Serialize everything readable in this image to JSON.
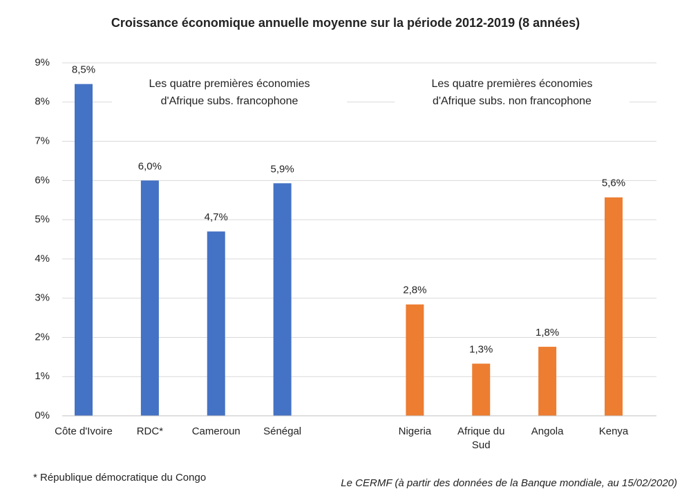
{
  "chart_data": {
    "type": "bar",
    "title": "Croissance économique annuelle moyenne sur la période 2012-2019  (8 années)",
    "categories": [
      "Côte d'Ivoire",
      "RDC*",
      "Cameroun",
      "Sénégal",
      null,
      "Nigeria",
      "Afrique du Sud",
      "Angola",
      "Kenya"
    ],
    "values": [
      8.46,
      6.0,
      4.7,
      5.93,
      null,
      2.84,
      1.33,
      1.76,
      5.57
    ],
    "value_labels": [
      "8,5%",
      "6,0%",
      "4,7%",
      "5,9%",
      null,
      "2,8%",
      "1,3%",
      "1,8%",
      "5,6%"
    ],
    "colors": [
      "#4472c4",
      "#4472c4",
      "#4472c4",
      "#4472c4",
      null,
      "#ed7d31",
      "#ed7d31",
      "#ed7d31",
      "#ed7d31"
    ],
    "ylim": [
      0,
      9
    ],
    "yticks": [
      {
        "value": 0,
        "label": "0%"
      },
      {
        "value": 1,
        "label": "1%"
      },
      {
        "value": 2,
        "label": "2%"
      },
      {
        "value": 3,
        "label": "3%"
      },
      {
        "value": 4,
        "label": "4%"
      },
      {
        "value": 5,
        "label": "5%"
      },
      {
        "value": 6,
        "label": "6%"
      },
      {
        "value": 7,
        "label": "7%"
      },
      {
        "value": 8,
        "label": "8%"
      },
      {
        "value": 9,
        "label": "9%"
      }
    ],
    "grid": true,
    "annotations": [
      [
        "Les quatre premières économies",
        "d'Afrique subs.  francophone"
      ],
      [
        "Les quatre premières économies",
        "d'Afrique subs. non francophone"
      ]
    ],
    "footnote": "* République démocratique du Congo",
    "source": "Le CERMF (à partir des données de la Banque mondiale, au 15/02/2020)"
  }
}
